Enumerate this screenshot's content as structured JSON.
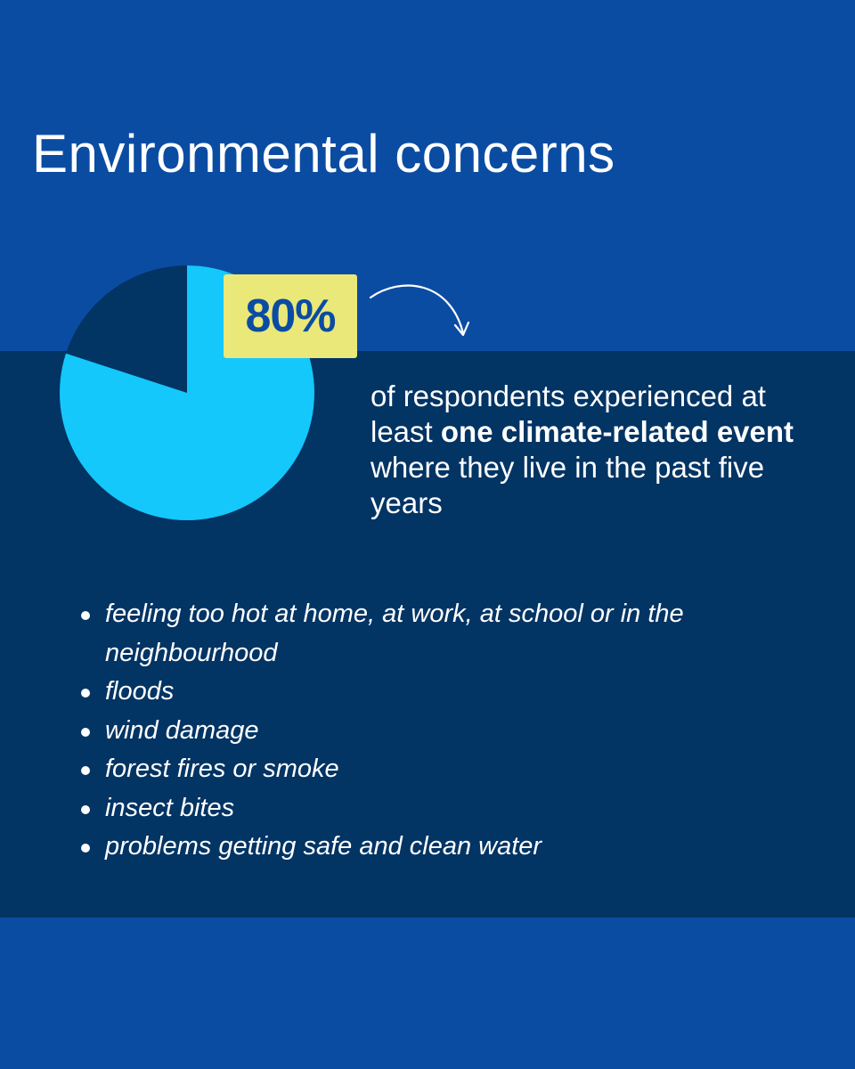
{
  "title": "Environmental concerns",
  "stat": {
    "value": "80%",
    "fraction": 0.8
  },
  "description": {
    "part1": "of respondents experienced at least ",
    "bold1": "one climate-related event",
    "part2": " where they live in the past five years"
  },
  "events": [
    "feeling too hot at home, at work, at school or in the neighbourhood",
    "floods",
    "wind damage",
    "forest fires or smoke",
    "insect bites",
    "problems getting safe and clean water"
  ],
  "colors": {
    "background": "#0b4ca3",
    "band": "#023464",
    "pie_main": "#14c8fb",
    "pie_rest": "#023464",
    "badge": "#e9e879",
    "badge_text": "#0b4ca3"
  },
  "icons": {
    "arrow": "curved-arrow-icon",
    "bullet": "bullet-dot-icon"
  }
}
